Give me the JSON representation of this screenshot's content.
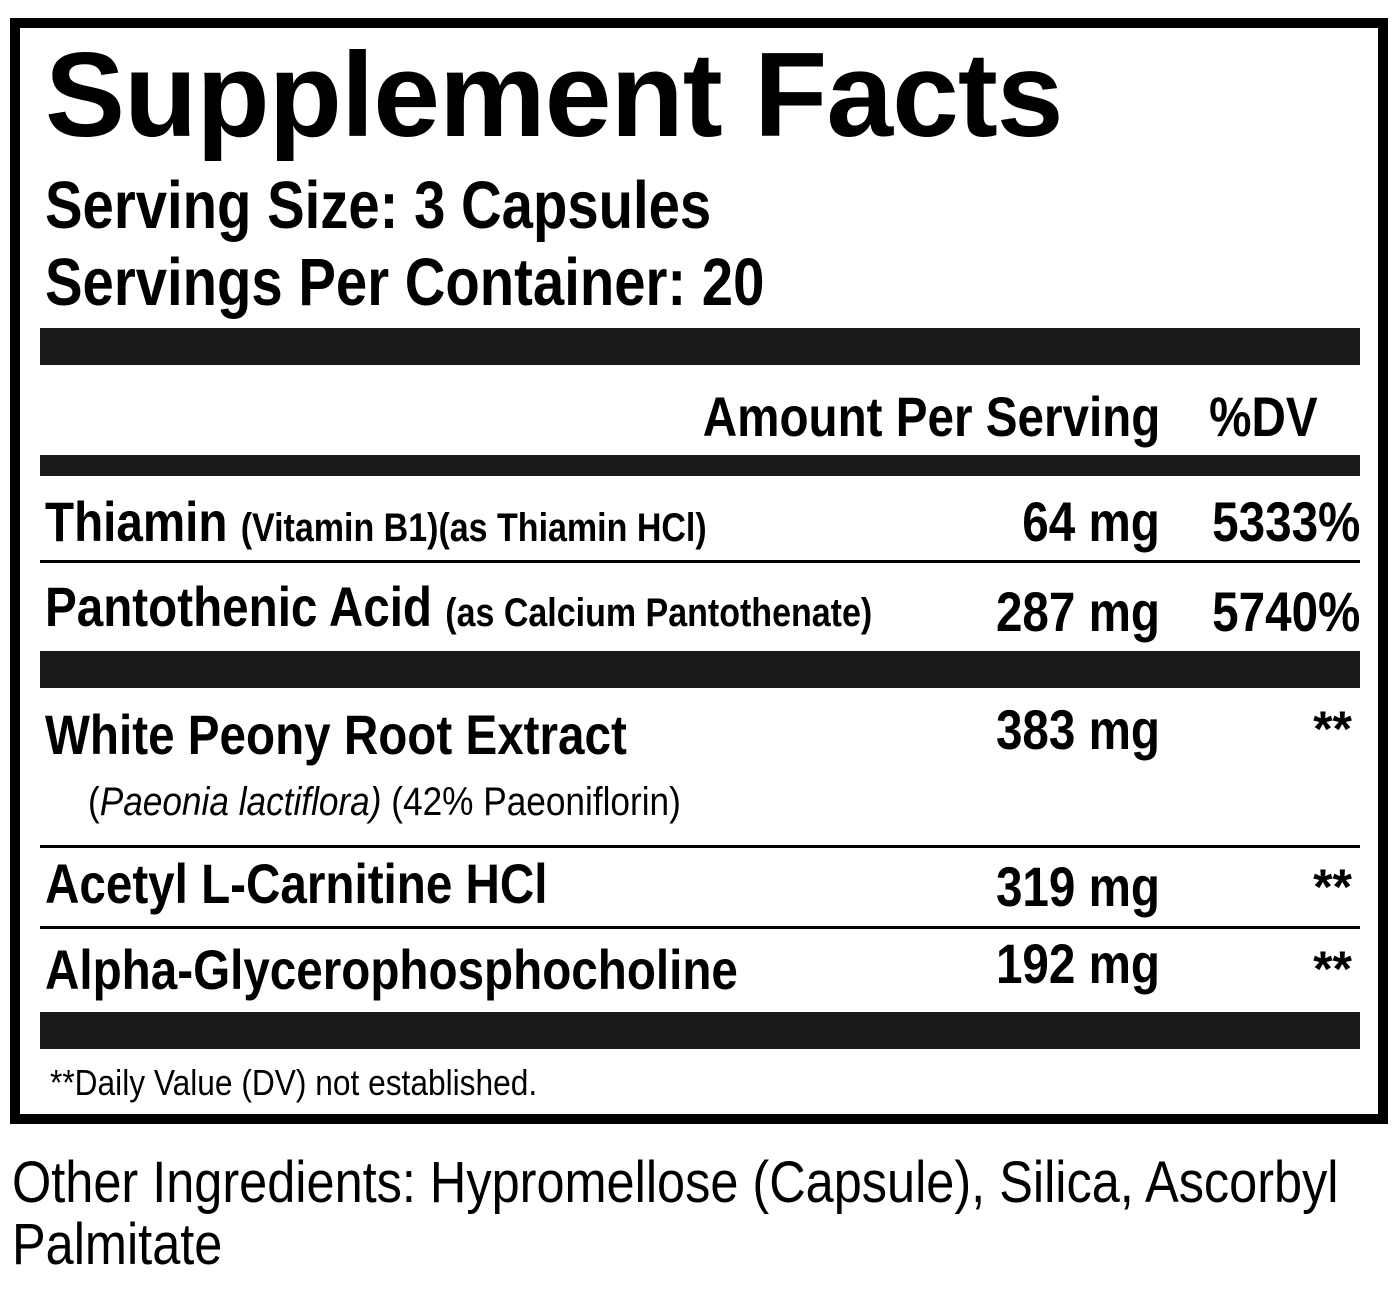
{
  "header": {
    "title": "Supplement Facts",
    "serving_size": "Serving Size: 3 Capsules",
    "servings_per_container": "Servings Per Container: 20"
  },
  "table": {
    "columns": [
      "Amount Per Serving",
      "%DV"
    ],
    "rows": [
      {
        "name": "Thiamin",
        "detail": "(Vitamin B1)(as Thiamin HCl)",
        "amount": "64 mg",
        "dv": "5333%"
      },
      {
        "name": "Pantothenic Acid",
        "detail": "(as Calcium Pantothenate)",
        "amount": "287 mg",
        "dv": "5740%"
      },
      {
        "name": "White Peony Root Extract",
        "detail": [
          "(",
          "Paeonia lactiflora)",
          " (42% Paeoniflorin)"
        ],
        "amount": "383 mg",
        "dv": "**"
      },
      {
        "name": "Acetyl L-Carnitine HCl",
        "amount": "319 mg",
        "dv": "**"
      },
      {
        "name": "Alpha-Glycerophosphocholine",
        "amount": "192 mg",
        "dv": "**"
      }
    ]
  },
  "footnote": "**Daily Value (DV) not established.",
  "other_ingredients": "Other Ingredients: Hypromellose (Capsule), Silica, Ascorbyl Palmitate"
}
